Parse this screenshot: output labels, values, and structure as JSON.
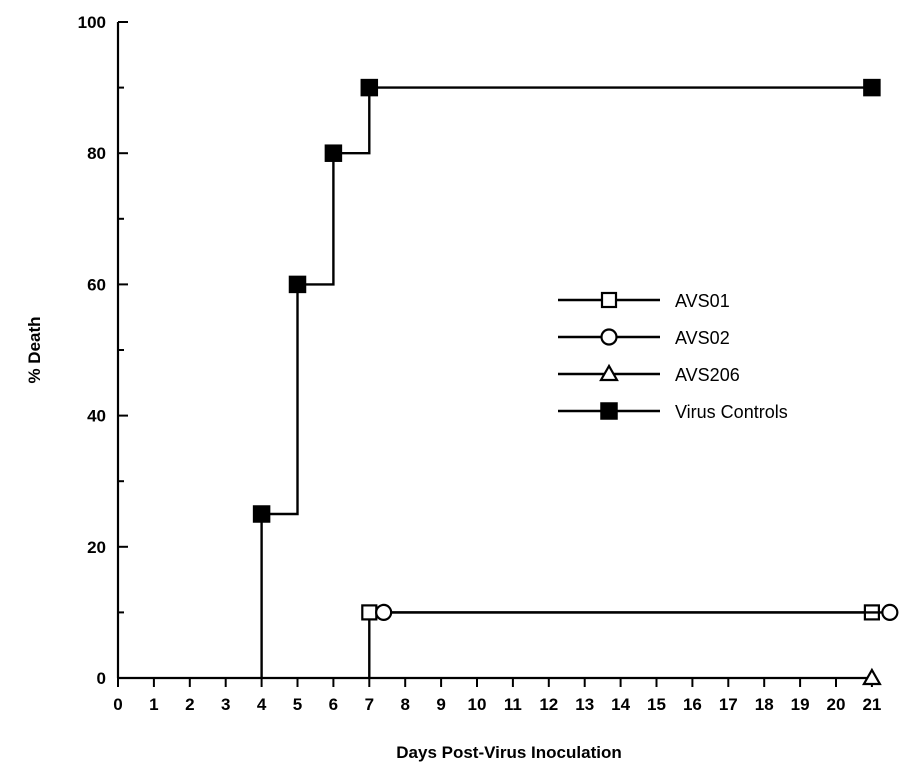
{
  "chart_data": {
    "type": "line",
    "step": true,
    "title": "",
    "xlabel": "Days Post-Virus Inoculation",
    "ylabel": "% Death",
    "xlim": [
      0,
      21
    ],
    "ylim": [
      0,
      100
    ],
    "x_ticks": [
      0,
      1,
      2,
      3,
      4,
      5,
      6,
      7,
      8,
      9,
      10,
      11,
      12,
      13,
      14,
      15,
      16,
      17,
      18,
      19,
      20,
      21
    ],
    "y_ticks": [
      0,
      20,
      40,
      60,
      80,
      100
    ],
    "grid": false,
    "legend_position": "right-center",
    "series": [
      {
        "name": "AVS01",
        "marker": "open-square",
        "x": [
          7,
          21
        ],
        "y": [
          10,
          10
        ],
        "step_from": [
          7,
          0
        ]
      },
      {
        "name": "AVS02",
        "marker": "open-circle",
        "x": [
          7.4,
          21.5
        ],
        "y": [
          10,
          10
        ]
      },
      {
        "name": "AVS206",
        "marker": "open-triangle",
        "x": [
          21
        ],
        "y": [
          0
        ]
      },
      {
        "name": "Virus Controls",
        "marker": "filled-square",
        "x": [
          4,
          5,
          6,
          7,
          21
        ],
        "y": [
          25,
          60,
          80,
          90,
          90
        ],
        "step_from": [
          4,
          0
        ]
      }
    ]
  }
}
